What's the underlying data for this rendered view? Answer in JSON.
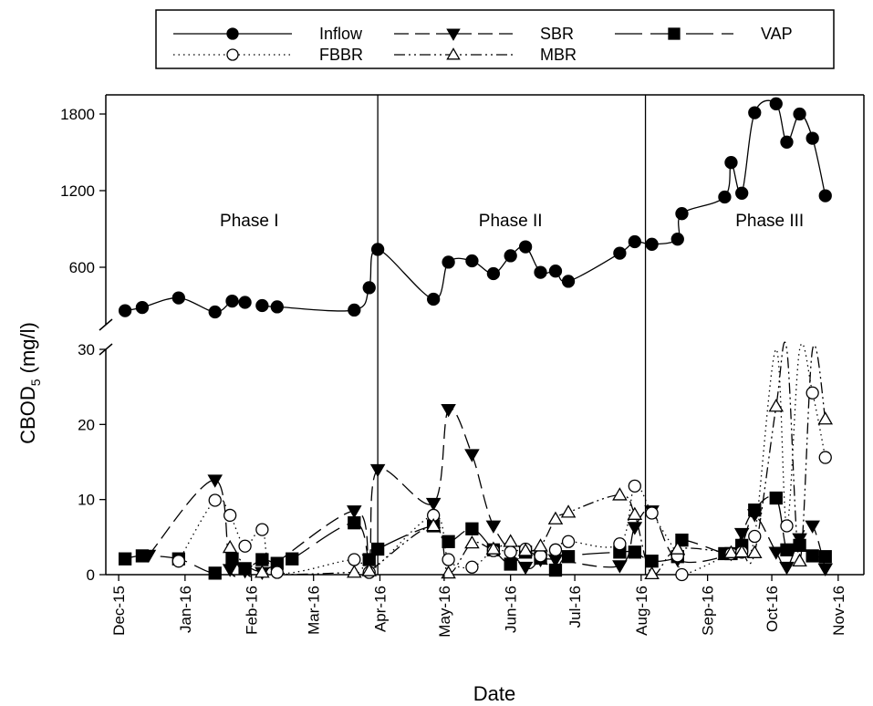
{
  "chart_data": {
    "type": "line",
    "xlabel": "Date",
    "ylabel": "CBOD",
    "ylabel_sub": "5",
    "ylabel_unit": " (mg/l)",
    "y_axis_break": true,
    "ylim_lower": [
      0,
      30
    ],
    "ylim_upper": [
      150,
      1950
    ],
    "lower_yticks": [
      0,
      10,
      20,
      30
    ],
    "upper_yticks": [
      600,
      1200,
      1800
    ],
    "xlim": [
      "2015-11-25",
      "2016-11-13"
    ],
    "xticks": [
      {
        "label": "Dec-15",
        "date": "2015-12-01"
      },
      {
        "label": "Jan-16",
        "date": "2016-01-01"
      },
      {
        "label": "Feb-16",
        "date": "2016-02-01"
      },
      {
        "label": "Mar-16",
        "date": "2016-03-01"
      },
      {
        "label": "Apr-16",
        "date": "2016-04-01"
      },
      {
        "label": "May-16",
        "date": "2016-05-01"
      },
      {
        "label": "Jun-16",
        "date": "2016-06-01"
      },
      {
        "label": "Jul-16",
        "date": "2016-07-01"
      },
      {
        "label": "Aug-16",
        "date": "2016-08-01"
      },
      {
        "label": "Sep-16",
        "date": "2016-09-01"
      },
      {
        "label": "Oct-16",
        "date": "2016-10-01"
      },
      {
        "label": "Nov-16",
        "date": "2016-11-01"
      }
    ],
    "phase_boundaries": [
      "2016-03-31",
      "2016-08-03"
    ],
    "phases": [
      {
        "label": "Phase I",
        "date": "2016-01-31",
        "y": 920
      },
      {
        "label": "Phase II",
        "date": "2016-06-01",
        "y": 920
      },
      {
        "label": "Phase III",
        "date": "2016-09-30",
        "y": 920
      }
    ],
    "grid": false,
    "legend_position": "top",
    "legend_layout": [
      [
        "Inflow",
        "SBR",
        "VAP"
      ],
      [
        "FBBR",
        "MBR"
      ]
    ],
    "series": [
      {
        "name": "Inflow",
        "line": "solid",
        "marker": "circle",
        "filled": true,
        "segments": [
          [
            [
              "2015-12-04",
              260
            ],
            [
              "2015-12-12",
              285
            ],
            [
              "2015-12-29",
              360
            ],
            [
              "2016-01-15",
              250
            ],
            [
              "2016-01-23",
              335
            ],
            [
              "2016-01-29",
              325
            ]
          ],
          [
            [
              "2016-02-06",
              300
            ],
            [
              "2016-02-13",
              290
            ],
            [
              "2016-03-20",
              265
            ],
            [
              "2016-03-27",
              440
            ],
            [
              "2016-03-31",
              740
            ],
            [
              "2016-04-26",
              350
            ],
            [
              "2016-05-03",
              640
            ],
            [
              "2016-05-14",
              650
            ],
            [
              "2016-05-24",
              550
            ],
            [
              "2016-06-01",
              690
            ],
            [
              "2016-06-08",
              760
            ],
            [
              "2016-06-15",
              560
            ],
            [
              "2016-06-22",
              570
            ],
            [
              "2016-06-28",
              490
            ],
            [
              "2016-07-22",
              710
            ],
            [
              "2016-07-29",
              800
            ],
            [
              "2016-08-06",
              780
            ],
            [
              "2016-08-18",
              820
            ],
            [
              "2016-08-20",
              1020
            ],
            [
              "2016-09-09",
              1150
            ],
            [
              "2016-09-12",
              1420
            ],
            [
              "2016-09-17",
              1180
            ],
            [
              "2016-09-23",
              1810
            ],
            [
              "2016-10-03",
              1880
            ],
            [
              "2016-10-08",
              1580
            ],
            [
              "2016-10-14",
              1800
            ],
            [
              "2016-10-20",
              1610
            ],
            [
              "2016-10-26",
              1160
            ]
          ]
        ]
      },
      {
        "name": "SBR",
        "line": "dashed",
        "marker": "triangle-down",
        "filled": true,
        "segments": [
          [
            [
              "2015-12-15",
              2.6
            ],
            [
              "2016-01-15",
              12.6
            ],
            [
              "2016-01-22",
              0.7
            ],
            [
              "2016-01-29",
              0.5
            ],
            [
              "2016-02-06",
              0.3
            ],
            [
              "2016-03-20",
              8.5
            ],
            [
              "2016-03-27",
              2.0
            ],
            [
              "2016-03-31",
              14.0
            ],
            [
              "2016-04-26",
              9.5
            ],
            [
              "2016-05-03",
              22.0
            ],
            [
              "2016-05-14",
              16.0
            ],
            [
              "2016-05-24",
              6.5
            ],
            [
              "2016-06-08",
              1.0
            ],
            [
              "2016-06-15",
              2.0
            ],
            [
              "2016-06-22",
              2.0
            ],
            [
              "2016-07-22",
              1.2
            ],
            [
              "2016-07-29",
              6.3
            ],
            [
              "2016-08-06",
              8.5
            ],
            [
              "2016-08-18",
              2.0
            ],
            [
              "2016-09-12",
              2.8
            ],
            [
              "2016-09-17",
              5.5
            ],
            [
              "2016-09-23",
              8.0
            ],
            [
              "2016-10-03",
              3.0
            ],
            [
              "2016-10-08",
              1.0
            ],
            [
              "2016-10-14",
              4.8
            ],
            [
              "2016-10-20",
              6.5
            ],
            [
              "2016-10-26",
              0.8
            ]
          ]
        ]
      },
      {
        "name": "VAP",
        "line": "longdash",
        "marker": "square",
        "filled": true,
        "segments": [
          [
            [
              "2015-12-04",
              2.1
            ],
            [
              "2015-12-12",
              2.5
            ],
            [
              "2015-12-29",
              2.1
            ],
            [
              "2016-01-15",
              0.2
            ],
            [
              "2016-01-23",
              2.1
            ],
            [
              "2016-01-29",
              0.8
            ],
            [
              "2016-02-06",
              2.0
            ],
            [
              "2016-02-13",
              1.5
            ],
            [
              "2016-02-20",
              2.1
            ],
            [
              "2016-03-20",
              6.9
            ],
            [
              "2016-03-27",
              2.0
            ],
            [
              "2016-03-31",
              3.4
            ],
            [
              "2016-04-26",
              6.5
            ],
            [
              "2016-05-03",
              4.4
            ],
            [
              "2016-05-14",
              6.1
            ],
            [
              "2016-05-24",
              3.3
            ],
            [
              "2016-06-01",
              1.4
            ],
            [
              "2016-06-08",
              3.0
            ],
            [
              "2016-06-15",
              2.2
            ],
            [
              "2016-06-22",
              0.6
            ],
            [
              "2016-06-28",
              2.4
            ],
            [
              "2016-07-22",
              3.0
            ],
            [
              "2016-07-29",
              3.0
            ],
            [
              "2016-08-06",
              1.8
            ],
            [
              "2016-08-18",
              2.4
            ],
            [
              "2016-08-20",
              4.6
            ],
            [
              "2016-09-09",
              2.8
            ],
            [
              "2016-09-12",
              2.8
            ],
            [
              "2016-09-17",
              3.9
            ],
            [
              "2016-09-23",
              8.6
            ],
            [
              "2016-10-03",
              10.2
            ],
            [
              "2016-10-08",
              3.3
            ],
            [
              "2016-10-14",
              3.9
            ],
            [
              "2016-10-20",
              2.5
            ],
            [
              "2016-10-26",
              2.4
            ]
          ]
        ]
      },
      {
        "name": "FBBR",
        "line": "dotted",
        "marker": "circle",
        "filled": false,
        "segments": [
          [
            [
              "2015-12-29",
              1.8
            ],
            [
              "2016-01-15",
              9.9
            ],
            [
              "2016-01-22",
              7.9
            ],
            [
              "2016-01-29",
              3.8
            ],
            [
              "2016-02-06",
              6.0
            ],
            [
              "2016-02-13",
              0.3
            ],
            [
              "2016-03-20",
              2.0
            ],
            [
              "2016-03-27",
              0.3
            ],
            [
              "2016-04-26",
              7.9
            ],
            [
              "2016-05-03",
              2.0
            ],
            [
              "2016-05-14",
              1.0
            ],
            [
              "2016-05-24",
              3.2
            ],
            [
              "2016-06-01",
              3.0
            ],
            [
              "2016-06-08",
              3.4
            ],
            [
              "2016-06-15",
              2.5
            ],
            [
              "2016-06-22",
              3.3
            ],
            [
              "2016-06-28",
              4.4
            ],
            [
              "2016-07-22",
              4.1
            ],
            [
              "2016-07-29",
              11.8
            ],
            [
              "2016-08-06",
              8.2
            ],
            [
              "2016-08-18",
              2.5
            ],
            [
              "2016-08-20",
              0.0
            ],
            [
              "2016-09-12",
              2.8
            ],
            [
              "2016-09-17",
              3.0
            ],
            [
              "2016-09-23",
              5.1
            ],
            [
              "2016-10-03",
              30.0
            ],
            [
              "2016-10-08",
              6.5
            ],
            [
              "2016-10-14",
              30.0
            ],
            [
              "2016-10-20",
              24.2
            ],
            [
              "2016-10-26",
              15.6
            ]
          ]
        ]
      },
      {
        "name": "MBR",
        "line": "dashdotdot",
        "marker": "triangle-up",
        "filled": false,
        "segments": [
          [
            [
              "2016-01-22",
              3.6
            ],
            [
              "2016-02-06",
              0.3
            ],
            [
              "2016-03-20",
              0.3
            ],
            [
              "2016-03-27",
              0.5
            ],
            [
              "2016-04-26",
              6.5
            ],
            [
              "2016-05-03",
              0.2
            ],
            [
              "2016-05-14",
              4.2
            ],
            [
              "2016-05-24",
              3.4
            ],
            [
              "2016-06-01",
              4.4
            ],
            [
              "2016-06-08",
              3.2
            ],
            [
              "2016-06-15",
              3.8
            ],
            [
              "2016-06-22",
              7.4
            ],
            [
              "2016-06-28",
              8.3
            ],
            [
              "2016-07-22",
              10.6
            ],
            [
              "2016-07-29",
              8.0
            ],
            [
              "2016-08-06",
              0.1
            ],
            [
              "2016-08-18",
              3.4
            ],
            [
              "2016-09-12",
              2.9
            ],
            [
              "2016-09-17",
              3.0
            ],
            [
              "2016-09-23",
              2.9
            ],
            [
              "2016-10-03",
              22.4
            ],
            [
              "2016-10-08",
              30.0
            ],
            [
              "2016-10-14",
              1.8
            ],
            [
              "2016-10-20",
              30.0
            ],
            [
              "2016-10-26",
              20.7
            ]
          ]
        ]
      }
    ]
  }
}
